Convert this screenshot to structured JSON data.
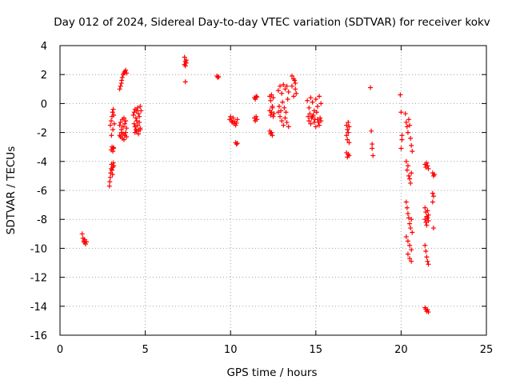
{
  "chart_data": {
    "type": "scatter",
    "title": "Day 012 of 2024, Sidereal Day-to-day VTEC variation (SDTVAR) for receiver kokv",
    "xlabel": "GPS time / hours",
    "ylabel": "SDTVAR / TECUs",
    "xlim": [
      0,
      25
    ],
    "ylim": [
      -16,
      4
    ],
    "xticks": [
      0,
      5,
      10,
      15,
      20,
      25
    ],
    "yticks": [
      -16,
      -14,
      -12,
      -10,
      -8,
      -6,
      -4,
      -2,
      0,
      2,
      4
    ],
    "grid": true,
    "marker": "+",
    "color": "#ff0000",
    "series": [
      {
        "name": "SDTVAR",
        "x": [
          1.3,
          1.35,
          1.4,
          1.42,
          1.45,
          1.5,
          1.55,
          2.9,
          2.92,
          2.95,
          2.97,
          3.0,
          3.02,
          3.05,
          3.08,
          3.1,
          3.12,
          3.15,
          3.0,
          3.05,
          3.1,
          3.12,
          3.15,
          2.95,
          3.0,
          3.02,
          3.05,
          3.08,
          3.1,
          3.12,
          3.15,
          3.18,
          3.5,
          3.55,
          3.6,
          3.62,
          3.65,
          3.7,
          3.75,
          3.8,
          3.85,
          3.9,
          3.5,
          3.55,
          3.6,
          3.65,
          3.7,
          3.75,
          3.8,
          3.85,
          3.9,
          3.5,
          3.55,
          3.6,
          3.65,
          3.7,
          3.75,
          3.8,
          3.85,
          3.9,
          4.3,
          4.35,
          4.4,
          4.45,
          4.5,
          4.55,
          4.6,
          4.65,
          4.7,
          4.75,
          4.35,
          4.4,
          4.45,
          4.5,
          4.55,
          4.6,
          4.65,
          4.7,
          4.4,
          4.5,
          4.6,
          4.7,
          7.3,
          7.35,
          7.4,
          7.3,
          7.35,
          7.4,
          7.35,
          9.2,
          9.25,
          9.3,
          9.95,
          10.0,
          10.05,
          10.1,
          10.15,
          10.2,
          10.25,
          10.3,
          10.35,
          10.4,
          10.3,
          10.35,
          10.4,
          11.4,
          11.45,
          11.5,
          11.55,
          11.4,
          11.45,
          11.5,
          11.55,
          12.3,
          12.35,
          12.4,
          12.45,
          12.5,
          12.3,
          12.35,
          12.4,
          12.45,
          12.5,
          12.55,
          12.3,
          12.35,
          12.4,
          12.45,
          12.8,
          12.9,
          13.0,
          13.1,
          13.2,
          13.3,
          13.4,
          12.8,
          12.9,
          13.0,
          13.1,
          13.2,
          13.3,
          13.4,
          12.85,
          12.95,
          13.05,
          13.15,
          13.25,
          13.35,
          13.6,
          13.7,
          13.75,
          13.8,
          13.85,
          13.6,
          13.7,
          13.8,
          14.5,
          14.6,
          14.7,
          14.8,
          14.9,
          15.0,
          15.1,
          15.2,
          15.3,
          14.6,
          14.7,
          14.8,
          14.9,
          15.0,
          15.1,
          15.2,
          15.3,
          14.55,
          14.65,
          14.75,
          14.85,
          14.95,
          15.05,
          15.15,
          15.25,
          16.8,
          16.85,
          16.9,
          16.95,
          16.8,
          16.85,
          16.9,
          16.95,
          16.8,
          16.85,
          16.9,
          16.95,
          18.2,
          18.25,
          18.3,
          18.3,
          18.35,
          19.95,
          20.0,
          20.05,
          20.0,
          20.05,
          20.25,
          20.3,
          20.35,
          20.4,
          20.45,
          20.5,
          20.55,
          20.6,
          20.65,
          20.3,
          20.35,
          20.4,
          20.45,
          20.5,
          20.55,
          20.6,
          20.3,
          20.35,
          20.4,
          20.45,
          20.5,
          20.55,
          20.6,
          20.65,
          20.3,
          20.4,
          20.5,
          20.6,
          20.4,
          20.5,
          20.6,
          21.4,
          21.45,
          21.5,
          21.55,
          21.6,
          21.4,
          21.45,
          21.5,
          21.55,
          21.6,
          21.4,
          21.45,
          21.5,
          21.55,
          21.6,
          21.4,
          21.45,
          21.5,
          21.55,
          21.6,
          21.4,
          21.45,
          21.5,
          21.55,
          21.6,
          21.85,
          21.9,
          21.95,
          21.85,
          21.9,
          21.85,
          21.9
        ],
        "y": [
          -9.0,
          -9.3,
          -9.5,
          -9.6,
          -9.4,
          -9.7,
          -9.55,
          -5.7,
          -5.4,
          -5.1,
          -4.8,
          -4.5,
          -4.2,
          -4.6,
          -4.9,
          -4.4,
          -4.1,
          -4.3,
          -3.2,
          -3.0,
          -3.3,
          -3.1,
          -3.05,
          -1.5,
          -1.2,
          -2.2,
          -0.9,
          -0.6,
          -1.8,
          -0.4,
          -0.8,
          -1.4,
          1.0,
          1.2,
          1.4,
          1.6,
          1.8,
          2.0,
          2.1,
          2.2,
          2.3,
          2.1,
          -1.5,
          -1.3,
          -1.8,
          -1.1,
          -1.6,
          -1.0,
          -1.4,
          -1.2,
          -1.7,
          -2.2,
          -2.3,
          -2.0,
          -2.4,
          -2.1,
          -2.5,
          -2.2,
          -2.0,
          -2.3,
          -0.8,
          -0.6,
          -0.4,
          -1.0,
          -0.5,
          -0.3,
          -0.7,
          -0.9,
          -0.2,
          -0.5,
          -1.4,
          -1.6,
          -1.8,
          -1.2,
          -1.5,
          -1.9,
          -1.3,
          -1.7,
          -2.0,
          -1.9,
          -2.1,
          -1.8,
          3.2,
          2.9,
          3.0,
          2.7,
          2.6,
          2.8,
          1.5,
          1.9,
          1.8,
          1.85,
          -1.1,
          -0.9,
          -1.2,
          -1.3,
          -1.0,
          -1.4,
          -1.25,
          -1.5,
          -1.35,
          -1.1,
          -2.7,
          -2.8,
          -2.75,
          0.4,
          0.3,
          0.5,
          0.45,
          -1.0,
          -1.2,
          -0.9,
          -1.1,
          0.5,
          0.2,
          0.6,
          -0.2,
          0.4,
          -0.5,
          -0.8,
          -0.6,
          -0.3,
          -0.9,
          -0.7,
          -1.9,
          -2.1,
          -2.0,
          -2.2,
          0.9,
          1.2,
          0.7,
          1.3,
          1.0,
          1.2,
          0.8,
          -0.6,
          -0.9,
          -1.2,
          -1.5,
          -1.0,
          -1.3,
          -1.6,
          -0.2,
          -0.5,
          0.1,
          -0.3,
          -0.6,
          0.3,
          1.9,
          1.7,
          1.6,
          1.0,
          0.7,
          1.2,
          0.5,
          1.4,
          0.2,
          -0.3,
          0.4,
          0.1,
          -0.5,
          0.3,
          -0.2,
          0.5,
          0.0,
          -1.2,
          -1.4,
          -0.9,
          -1.3,
          -1.6,
          -1.1,
          -1.5,
          -1.2,
          -0.9,
          -0.7,
          -1.0,
          -0.8,
          -1.1,
          -0.6,
          -1.3,
          -1.0,
          -1.5,
          -1.8,
          -1.3,
          -1.6,
          -2.2,
          -2.5,
          -2.0,
          -2.7,
          -3.4,
          -3.7,
          -3.5,
          -3.6,
          1.1,
          -1.9,
          -2.8,
          -3.1,
          -3.6,
          0.6,
          -0.6,
          -2.5,
          -3.1,
          -2.2,
          -0.7,
          -1.3,
          -1.6,
          -2.0,
          -1.1,
          -1.5,
          -2.4,
          -2.9,
          -3.3,
          -4.0,
          -4.6,
          -4.3,
          -5.0,
          -5.2,
          -5.5,
          -4.8,
          -6.8,
          -7.2,
          -7.6,
          -7.9,
          -8.3,
          -8.6,
          -8.0,
          -8.9,
          -9.2,
          -9.5,
          -9.8,
          -10.1,
          -10.4,
          -10.7,
          -10.9,
          -4.2,
          -4.4,
          -4.1,
          -4.3,
          -4.5,
          -7.2,
          -7.5,
          -7.8,
          -7.4,
          -7.7,
          -8.0,
          -8.2,
          -8.4,
          -7.9,
          -8.1,
          -9.8,
          -10.2,
          -10.6,
          -10.9,
          -11.1,
          -14.1,
          -14.2,
          -14.35,
          -14.25,
          -14.4,
          -4.8,
          -5.0,
          -4.9,
          -6.2,
          -6.4,
          -6.8,
          -8.6
        ]
      }
    ]
  }
}
